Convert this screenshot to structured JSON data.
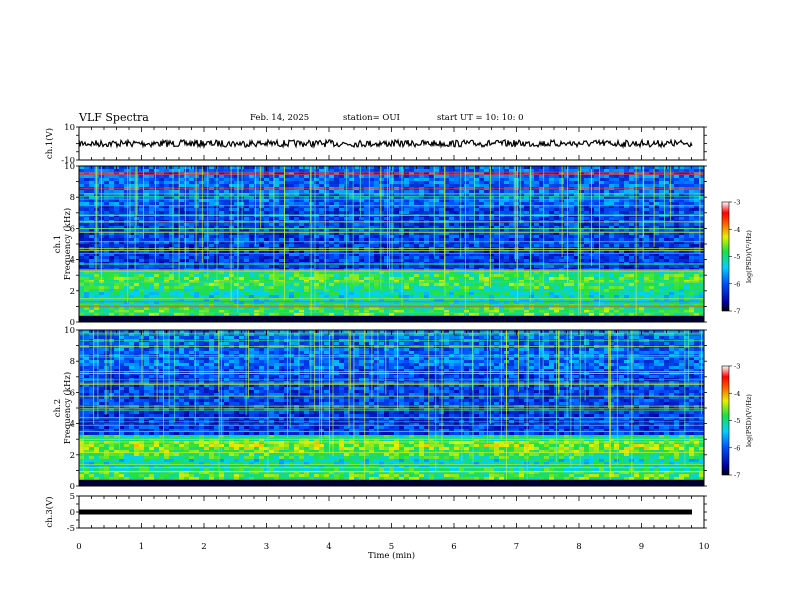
{
  "header": {
    "title": "VLF Spectra",
    "date": "Feb. 14, 2025",
    "station": "station= OUI",
    "start": "start  UT  =   10: 10: 0"
  },
  "chart_data": [
    {
      "type": "line",
      "name": "ch1-waveform",
      "ylabel": "ch.1(V)",
      "ylim": [
        -10,
        10
      ],
      "yticks": [
        "10",
        "-10"
      ],
      "trace_level": 0,
      "trace_color": "#000000"
    },
    {
      "type": "heatmap",
      "name": "ch1-spectrogram",
      "ylabel": "ch.1\nFrequency (kHz)",
      "ylabel_line1": "ch.1",
      "ylabel_line2": "Frequency (kHz)",
      "ylim": [
        0,
        10
      ],
      "yticks": [
        "0",
        "2",
        "4",
        "6",
        "8",
        "10"
      ],
      "xlim": [
        0,
        10
      ],
      "colorbar": {
        "label": "log(PSD)(V²/Hz)",
        "range": [
          -7,
          -3
        ],
        "ticks": [
          "-3",
          "-4",
          "-5",
          "-6",
          "-7"
        ]
      }
    },
    {
      "type": "heatmap",
      "name": "ch2-spectrogram",
      "ylabel": "ch.2\nFrequency (kHz)",
      "ylabel_line1": "ch.2",
      "ylabel_line2": "Frequency (kHz)",
      "ylim": [
        0,
        10
      ],
      "yticks": [
        "0",
        "2",
        "4",
        "6",
        "8",
        "10"
      ],
      "xlim": [
        0,
        10
      ],
      "colorbar": {
        "label": "log(PSD)(V²/Hz)",
        "range": [
          -7,
          -3
        ],
        "ticks": [
          "-3",
          "-4",
          "-5",
          "-6",
          "-7"
        ]
      }
    },
    {
      "type": "line",
      "name": "ch3-waveform",
      "ylabel": "ch.3(V)",
      "ylim": [
        -5,
        5
      ],
      "yticks": [
        "5",
        "0",
        "-5"
      ],
      "trace_level": 0,
      "trace_color": "#000000"
    }
  ],
  "xaxis": {
    "label": "Time (min)",
    "range": [
      0,
      10
    ],
    "ticks": [
      "0",
      "1",
      "2",
      "3",
      "4",
      "5",
      "6",
      "7",
      "8",
      "9",
      "10"
    ]
  }
}
